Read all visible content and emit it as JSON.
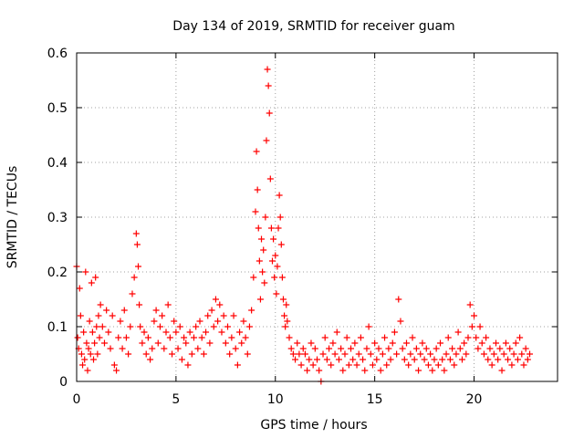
{
  "chart_data": {
    "type": "scatter",
    "title": "Day 134 of 2019, SRMTID for receiver guam",
    "xlabel": "GPS time / hours",
    "ylabel": "SRMTID / TECUs",
    "xlim": [
      0,
      24.2
    ],
    "ylim": [
      0,
      0.6
    ],
    "x_ticks": [
      0,
      5,
      10,
      15,
      20
    ],
    "y_ticks": [
      0,
      0.1,
      0.2,
      0.3,
      0.4,
      0.5,
      0.6
    ],
    "x_tick_labels": [
      "0",
      "5",
      "10",
      "15",
      "20"
    ],
    "y_tick_labels": [
      "0",
      "0.1",
      "0.2",
      "0.3",
      "0.4",
      "0.5",
      "0.6"
    ],
    "grid": true,
    "marker": "+",
    "series": [
      {
        "name": "SRMTID",
        "color": "#ff0000",
        "points": [
          [
            0.0,
            0.21
          ],
          [
            0.05,
            0.08
          ],
          [
            0.1,
            0.06
          ],
          [
            0.15,
            0.17
          ],
          [
            0.2,
            0.12
          ],
          [
            0.25,
            0.05
          ],
          [
            0.3,
            0.03
          ],
          [
            0.35,
            0.09
          ],
          [
            0.4,
            0.04
          ],
          [
            0.45,
            0.2
          ],
          [
            0.5,
            0.07
          ],
          [
            0.55,
            0.02
          ],
          [
            0.6,
            0.06
          ],
          [
            0.65,
            0.11
          ],
          [
            0.7,
            0.05
          ],
          [
            0.75,
            0.18
          ],
          [
            0.8,
            0.09
          ],
          [
            0.85,
            0.04
          ],
          [
            0.9,
            0.07
          ],
          [
            0.95,
            0.19
          ],
          [
            1.0,
            0.1
          ],
          [
            1.05,
            0.05
          ],
          [
            1.1,
            0.12
          ],
          [
            1.15,
            0.08
          ],
          [
            1.2,
            0.14
          ],
          [
            1.3,
            0.1
          ],
          [
            1.4,
            0.07
          ],
          [
            1.5,
            0.13
          ],
          [
            1.6,
            0.09
          ],
          [
            1.7,
            0.06
          ],
          [
            1.8,
            0.12
          ],
          [
            1.9,
            0.03
          ],
          [
            2.0,
            0.02
          ],
          [
            2.1,
            0.08
          ],
          [
            2.2,
            0.11
          ],
          [
            2.3,
            0.06
          ],
          [
            2.4,
            0.13
          ],
          [
            2.5,
            0.08
          ],
          [
            2.6,
            0.05
          ],
          [
            2.7,
            0.1
          ],
          [
            2.8,
            0.16
          ],
          [
            2.9,
            0.19
          ],
          [
            3.0,
            0.27
          ],
          [
            3.05,
            0.25
          ],
          [
            3.1,
            0.21
          ],
          [
            3.15,
            0.14
          ],
          [
            3.2,
            0.1
          ],
          [
            3.3,
            0.07
          ],
          [
            3.4,
            0.09
          ],
          [
            3.5,
            0.05
          ],
          [
            3.6,
            0.08
          ],
          [
            3.7,
            0.04
          ],
          [
            3.8,
            0.06
          ],
          [
            3.9,
            0.11
          ],
          [
            4.0,
            0.13
          ],
          [
            4.1,
            0.07
          ],
          [
            4.2,
            0.1
          ],
          [
            4.3,
            0.12
          ],
          [
            4.4,
            0.06
          ],
          [
            4.5,
            0.09
          ],
          [
            4.6,
            0.14
          ],
          [
            4.7,
            0.08
          ],
          [
            4.8,
            0.05
          ],
          [
            4.9,
            0.11
          ],
          [
            5.0,
            0.09
          ],
          [
            5.1,
            0.06
          ],
          [
            5.2,
            0.1
          ],
          [
            5.3,
            0.04
          ],
          [
            5.4,
            0.08
          ],
          [
            5.5,
            0.07
          ],
          [
            5.6,
            0.03
          ],
          [
            5.7,
            0.09
          ],
          [
            5.8,
            0.05
          ],
          [
            5.9,
            0.08
          ],
          [
            6.0,
            0.1
          ],
          [
            6.1,
            0.06
          ],
          [
            6.2,
            0.11
          ],
          [
            6.3,
            0.08
          ],
          [
            6.4,
            0.05
          ],
          [
            6.5,
            0.09
          ],
          [
            6.6,
            0.12
          ],
          [
            6.7,
            0.07
          ],
          [
            6.8,
            0.13
          ],
          [
            6.9,
            0.1
          ],
          [
            7.0,
            0.15
          ],
          [
            7.1,
            0.11
          ],
          [
            7.2,
            0.14
          ],
          [
            7.3,
            0.09
          ],
          [
            7.4,
            0.12
          ],
          [
            7.5,
            0.07
          ],
          [
            7.6,
            0.1
          ],
          [
            7.7,
            0.05
          ],
          [
            7.8,
            0.08
          ],
          [
            7.9,
            0.12
          ],
          [
            8.0,
            0.06
          ],
          [
            8.1,
            0.03
          ],
          [
            8.2,
            0.09
          ],
          [
            8.3,
            0.07
          ],
          [
            8.4,
            0.11
          ],
          [
            8.5,
            0.08
          ],
          [
            8.6,
            0.05
          ],
          [
            8.7,
            0.1
          ],
          [
            8.8,
            0.13
          ],
          [
            8.9,
            0.19
          ],
          [
            9.0,
            0.31
          ],
          [
            9.05,
            0.42
          ],
          [
            9.1,
            0.35
          ],
          [
            9.15,
            0.28
          ],
          [
            9.2,
            0.22
          ],
          [
            9.25,
            0.15
          ],
          [
            9.3,
            0.26
          ],
          [
            9.35,
            0.2
          ],
          [
            9.4,
            0.24
          ],
          [
            9.45,
            0.18
          ],
          [
            9.5,
            0.3
          ],
          [
            9.55,
            0.44
          ],
          [
            9.6,
            0.57
          ],
          [
            9.65,
            0.54
          ],
          [
            9.7,
            0.49
          ],
          [
            9.75,
            0.37
          ],
          [
            9.8,
            0.28
          ],
          [
            9.85,
            0.22
          ],
          [
            9.9,
            0.26
          ],
          [
            9.95,
            0.19
          ],
          [
            10.0,
            0.23
          ],
          [
            10.05,
            0.16
          ],
          [
            10.1,
            0.21
          ],
          [
            10.15,
            0.28
          ],
          [
            10.2,
            0.34
          ],
          [
            10.25,
            0.3
          ],
          [
            10.3,
            0.25
          ],
          [
            10.35,
            0.19
          ],
          [
            10.4,
            0.15
          ],
          [
            10.45,
            0.12
          ],
          [
            10.5,
            0.1
          ],
          [
            10.55,
            0.14
          ],
          [
            10.6,
            0.11
          ],
          [
            10.7,
            0.08
          ],
          [
            10.8,
            0.06
          ],
          [
            10.9,
            0.05
          ],
          [
            11.0,
            0.04
          ],
          [
            11.1,
            0.07
          ],
          [
            11.2,
            0.05
          ],
          [
            11.3,
            0.03
          ],
          [
            11.4,
            0.06
          ],
          [
            11.5,
            0.05
          ],
          [
            11.6,
            0.02
          ],
          [
            11.7,
            0.04
          ],
          [
            11.8,
            0.07
          ],
          [
            11.9,
            0.03
          ],
          [
            12.0,
            0.06
          ],
          [
            12.1,
            0.04
          ],
          [
            12.2,
            0.02
          ],
          [
            12.3,
            0.0
          ],
          [
            12.4,
            0.05
          ],
          [
            12.5,
            0.08
          ],
          [
            12.6,
            0.04
          ],
          [
            12.7,
            0.06
          ],
          [
            12.8,
            0.03
          ],
          [
            12.9,
            0.07
          ],
          [
            13.0,
            0.05
          ],
          [
            13.1,
            0.09
          ],
          [
            13.2,
            0.04
          ],
          [
            13.3,
            0.06
          ],
          [
            13.4,
            0.02
          ],
          [
            13.5,
            0.05
          ],
          [
            13.6,
            0.08
          ],
          [
            13.7,
            0.03
          ],
          [
            13.8,
            0.06
          ],
          [
            13.9,
            0.04
          ],
          [
            14.0,
            0.07
          ],
          [
            14.1,
            0.03
          ],
          [
            14.2,
            0.05
          ],
          [
            14.3,
            0.08
          ],
          [
            14.4,
            0.04
          ],
          [
            14.5,
            0.02
          ],
          [
            14.6,
            0.06
          ],
          [
            14.7,
            0.1
          ],
          [
            14.8,
            0.05
          ],
          [
            14.9,
            0.03
          ],
          [
            15.0,
            0.07
          ],
          [
            15.1,
            0.04
          ],
          [
            15.2,
            0.06
          ],
          [
            15.3,
            0.02
          ],
          [
            15.4,
            0.05
          ],
          [
            15.5,
            0.08
          ],
          [
            15.6,
            0.03
          ],
          [
            15.7,
            0.06
          ],
          [
            15.8,
            0.04
          ],
          [
            15.9,
            0.07
          ],
          [
            16.0,
            0.09
          ],
          [
            16.1,
            0.05
          ],
          [
            16.2,
            0.15
          ],
          [
            16.3,
            0.11
          ],
          [
            16.4,
            0.06
          ],
          [
            16.5,
            0.04
          ],
          [
            16.6,
            0.07
          ],
          [
            16.7,
            0.03
          ],
          [
            16.8,
            0.05
          ],
          [
            16.9,
            0.08
          ],
          [
            17.0,
            0.04
          ],
          [
            17.1,
            0.06
          ],
          [
            17.2,
            0.02
          ],
          [
            17.3,
            0.05
          ],
          [
            17.4,
            0.07
          ],
          [
            17.5,
            0.04
          ],
          [
            17.6,
            0.06
          ],
          [
            17.7,
            0.03
          ],
          [
            17.8,
            0.05
          ],
          [
            17.9,
            0.02
          ],
          [
            18.0,
            0.04
          ],
          [
            18.1,
            0.06
          ],
          [
            18.2,
            0.03
          ],
          [
            18.3,
            0.07
          ],
          [
            18.4,
            0.04
          ],
          [
            18.5,
            0.02
          ],
          [
            18.6,
            0.05
          ],
          [
            18.7,
            0.08
          ],
          [
            18.8,
            0.04
          ],
          [
            18.9,
            0.06
          ],
          [
            19.0,
            0.03
          ],
          [
            19.1,
            0.05
          ],
          [
            19.2,
            0.09
          ],
          [
            19.3,
            0.06
          ],
          [
            19.4,
            0.04
          ],
          [
            19.5,
            0.07
          ],
          [
            19.6,
            0.05
          ],
          [
            19.7,
            0.08
          ],
          [
            19.8,
            0.14
          ],
          [
            19.9,
            0.1
          ],
          [
            20.0,
            0.12
          ],
          [
            20.1,
            0.08
          ],
          [
            20.2,
            0.06
          ],
          [
            20.3,
            0.1
          ],
          [
            20.4,
            0.07
          ],
          [
            20.5,
            0.05
          ],
          [
            20.6,
            0.08
          ],
          [
            20.7,
            0.04
          ],
          [
            20.8,
            0.06
          ],
          [
            20.9,
            0.03
          ],
          [
            21.0,
            0.05
          ],
          [
            21.1,
            0.07
          ],
          [
            21.2,
            0.04
          ],
          [
            21.3,
            0.06
          ],
          [
            21.4,
            0.02
          ],
          [
            21.5,
            0.05
          ],
          [
            21.6,
            0.07
          ],
          [
            21.7,
            0.04
          ],
          [
            21.8,
            0.06
          ],
          [
            21.9,
            0.03
          ],
          [
            22.0,
            0.05
          ],
          [
            22.1,
            0.07
          ],
          [
            22.2,
            0.04
          ],
          [
            22.3,
            0.08
          ],
          [
            22.4,
            0.05
          ],
          [
            22.5,
            0.03
          ],
          [
            22.6,
            0.06
          ],
          [
            22.7,
            0.04
          ],
          [
            22.8,
            0.05
          ]
        ]
      }
    ]
  }
}
